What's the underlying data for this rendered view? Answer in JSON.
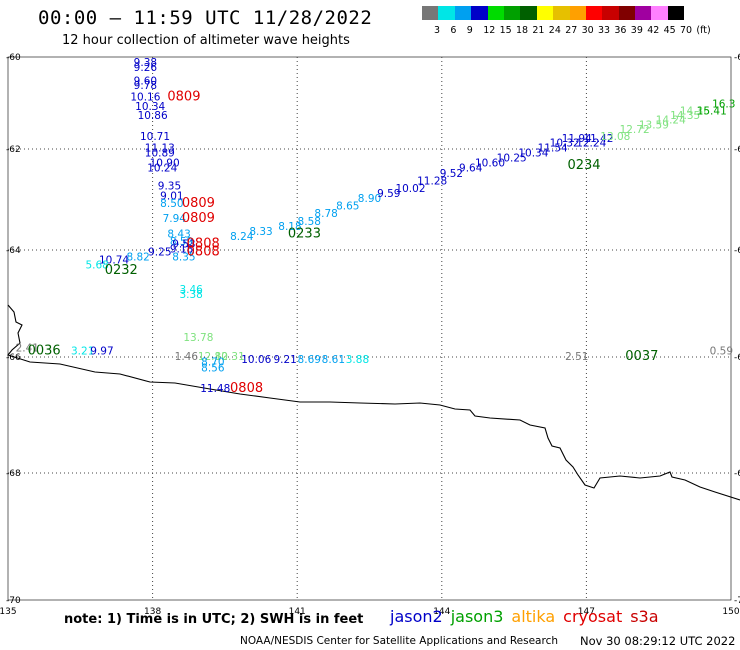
{
  "header": {
    "title": "00:00 – 11:59 UTC 11/28/2022",
    "subtitle": "12 hour collection of altimeter wave heights"
  },
  "scale": {
    "colors": [
      "#777777",
      "#00e6e6",
      "#00a0f0",
      "#0000c8",
      "#00dc00",
      "#00a000",
      "#006000",
      "#ffff00",
      "#e6c000",
      "#ffa000",
      "#ff0000",
      "#c80000",
      "#800000",
      "#a000a0",
      "#ff80ff",
      "#000000"
    ],
    "labels": [
      "3",
      "6",
      "9",
      "12",
      "15",
      "18",
      "21",
      "24",
      "27",
      "30",
      "33",
      "36",
      "39",
      "42",
      "45",
      "70",
      "(ft)"
    ]
  },
  "axes": {
    "lat_labels": [
      "-60",
      "-62",
      "-64",
      "-66",
      "-68",
      "-70"
    ],
    "lon_labels": [
      "135",
      "138",
      "141",
      "144",
      "147",
      "150"
    ]
  },
  "points": [
    {
      "t": "9.38",
      "c": "#0000c8",
      "lon": 137.85,
      "lat": -60.2
    },
    {
      "t": "9.26",
      "c": "#0000c8",
      "lon": 137.85,
      "lat": -60.3
    },
    {
      "t": "9.60",
      "c": "#0000c8",
      "lon": 137.85,
      "lat": -60.6
    },
    {
      "t": "9.78",
      "c": "#0000c8",
      "lon": 137.85,
      "lat": -60.7
    },
    {
      "t": "10.16",
      "c": "#0000c8",
      "lon": 137.85,
      "lat": -60.95
    },
    {
      "t": "10.34",
      "c": "#0000c8",
      "lon": 137.95,
      "lat": -61.15
    },
    {
      "t": "10.86",
      "c": "#0000c8",
      "lon": 138.0,
      "lat": -61.35
    },
    {
      "t": "10.71",
      "c": "#0000c8",
      "lon": 138.05,
      "lat": -61.8
    },
    {
      "t": "11.13",
      "c": "#0000c8",
      "lon": 138.15,
      "lat": -62.05
    },
    {
      "t": "10.89",
      "c": "#0000c8",
      "lon": 138.15,
      "lat": -62.15
    },
    {
      "t": "10.90",
      "c": "#0000c8",
      "lon": 138.25,
      "lat": -62.35
    },
    {
      "t": "10.24",
      "c": "#0000c8",
      "lon": 138.2,
      "lat": -62.45
    },
    {
      "t": "9.35",
      "c": "#0000c8",
      "lon": 138.35,
      "lat": -62.8
    },
    {
      "t": "9.01",
      "c": "#0000c8",
      "lon": 138.4,
      "lat": -63.0
    },
    {
      "t": "8.50",
      "c": "#00a0f0",
      "lon": 138.4,
      "lat": -63.15
    },
    {
      "t": "7.94",
      "c": "#00a0f0",
      "lon": 138.45,
      "lat": -63.45
    },
    {
      "t": "8.43",
      "c": "#00a0f0",
      "lon": 138.55,
      "lat": -63.75
    },
    {
      "t": "8.59",
      "c": "#00a0f0",
      "lon": 138.6,
      "lat": -63.9
    },
    {
      "t": "9.53",
      "c": "#0000c8",
      "lon": 138.65,
      "lat": -63.95
    },
    {
      "t": "9.18",
      "c": "#0000c8",
      "lon": 138.6,
      "lat": -64.05
    },
    {
      "t": "8.35",
      "c": "#00a0f0",
      "lon": 138.65,
      "lat": -64.2
    },
    {
      "t": "9.25",
      "c": "#0000c8",
      "lon": 138.15,
      "lat": -64.1
    },
    {
      "t": "8.82",
      "c": "#00a0f0",
      "lon": 137.7,
      "lat": -64.2
    },
    {
      "t": "10.74",
      "c": "#0000c8",
      "lon": 137.2,
      "lat": -64.25
    },
    {
      "t": "5.68",
      "c": "#00e6e6",
      "lon": 136.85,
      "lat": -64.35
    },
    {
      "t": "8.24",
      "c": "#00a0f0",
      "lon": 139.85,
      "lat": -63.8
    },
    {
      "t": "8.33",
      "c": "#00a0f0",
      "lon": 140.25,
      "lat": -63.7
    },
    {
      "t": "8.18",
      "c": "#00a0f0",
      "lon": 140.85,
      "lat": -63.6
    },
    {
      "t": "8.58",
      "c": "#00a0f0",
      "lon": 141.25,
      "lat": -63.5
    },
    {
      "t": "8.78",
      "c": "#00a0f0",
      "lon": 141.6,
      "lat": -63.35
    },
    {
      "t": "8.65",
      "c": "#00a0f0",
      "lon": 142.05,
      "lat": -63.2
    },
    {
      "t": "8.90",
      "c": "#00a0f0",
      "lon": 142.5,
      "lat": -63.05
    },
    {
      "t": "9.59",
      "c": "#0000c8",
      "lon": 142.9,
      "lat": -62.95
    },
    {
      "t": "10.02",
      "c": "#0000c8",
      "lon": 143.35,
      "lat": -62.85
    },
    {
      "t": "11.28",
      "c": "#0000c8",
      "lon": 143.8,
      "lat": -62.7
    },
    {
      "t": "9.52",
      "c": "#0000c8",
      "lon": 144.2,
      "lat": -62.55
    },
    {
      "t": "9.64",
      "c": "#0000c8",
      "lon": 144.6,
      "lat": -62.45
    },
    {
      "t": "10.60",
      "c": "#0000c8",
      "lon": 145.0,
      "lat": -62.35
    },
    {
      "t": "10.25",
      "c": "#0000c8",
      "lon": 145.45,
      "lat": -62.25
    },
    {
      "t": "10.34",
      "c": "#0000c8",
      "lon": 145.9,
      "lat": -62.15
    },
    {
      "t": "11.54",
      "c": "#0000c8",
      "lon": 146.3,
      "lat": -62.05
    },
    {
      "t": "10.32",
      "c": "#0000c8",
      "lon": 146.55,
      "lat": -61.95
    },
    {
      "t": "11.94",
      "c": "#0000c8",
      "lon": 146.8,
      "lat": -61.85
    },
    {
      "t": "12.24",
      "c": "#0000c8",
      "lon": 147.1,
      "lat": -61.95
    },
    {
      "t": "11.42",
      "c": "#0000c8",
      "lon": 147.25,
      "lat": -61.85
    },
    {
      "t": "13.08",
      "c": "#7fe27f",
      "lon": 147.6,
      "lat": -61.8
    },
    {
      "t": "12.72",
      "c": "#7fe27f",
      "lon": 148.0,
      "lat": -61.65
    },
    {
      "t": "13.59",
      "c": "#7fe27f",
      "lon": 148.4,
      "lat": -61.55
    },
    {
      "t": "14.24",
      "c": "#7fe27f",
      "lon": 148.75,
      "lat": -61.45
    },
    {
      "t": "14.35",
      "c": "#7fe27f",
      "lon": 149.05,
      "lat": -61.35
    },
    {
      "t": "14.36",
      "c": "#7fe27f",
      "lon": 149.25,
      "lat": -61.25
    },
    {
      "t": "15.41",
      "c": "#00a000",
      "lon": 149.6,
      "lat": -61.25
    },
    {
      "t": "16.3",
      "c": "#00a000",
      "lon": 149.85,
      "lat": -61.1
    },
    {
      "t": "3.46",
      "c": "#00e6e6",
      "lon": 138.8,
      "lat": -64.8
    },
    {
      "t": "3.38",
      "c": "#00e6e6",
      "lon": 138.8,
      "lat": -64.9
    },
    {
      "t": "13.78",
      "c": "#7fe27f",
      "lon": 138.95,
      "lat": -65.7
    },
    {
      "t": "1.46",
      "c": "#777777",
      "lon": 138.7,
      "lat": -66.05
    },
    {
      "t": "12.80",
      "c": "#7fe27f",
      "lon": 139.25,
      "lat": -66.05
    },
    {
      "t": "12.31",
      "c": "#7fe27f",
      "lon": 139.6,
      "lat": -66.05
    },
    {
      "t": "8.70",
      "c": "#00a0f0",
      "lon": 139.25,
      "lat": -66.15
    },
    {
      "t": "8.56",
      "c": "#00a0f0",
      "lon": 139.25,
      "lat": -66.25
    },
    {
      "t": "10.06",
      "c": "#0000c8",
      "lon": 140.15,
      "lat": -66.1
    },
    {
      "t": "9.21",
      "c": "#0000c8",
      "lon": 140.75,
      "lat": -66.1
    },
    {
      "t": "8.69",
      "c": "#00a0f0",
      "lon": 141.25,
      "lat": -66.1
    },
    {
      "t": "8.61",
      "c": "#00a0f0",
      "lon": 141.75,
      "lat": -66.1
    },
    {
      "t": "3.88",
      "c": "#00e6e6",
      "lon": 142.25,
      "lat": -66.1
    },
    {
      "t": "11.48",
      "c": "#0000c8",
      "lon": 139.3,
      "lat": -66.6
    },
    {
      "t": "2.41",
      "c": "#777777",
      "lon": 135.4,
      "lat": -65.9
    },
    {
      "t": "3.21",
      "c": "#00e6e6",
      "lon": 136.55,
      "lat": -65.95
    },
    {
      "t": "9.97",
      "c": "#0000c8",
      "lon": 136.95,
      "lat": -65.95
    },
    {
      "t": "2.51",
      "c": "#777777",
      "lon": 146.8,
      "lat": -66.05
    },
    {
      "t": "0.59",
      "c": "#777777",
      "lon": 149.8,
      "lat": -65.95
    }
  ],
  "pass_labels": [
    {
      "t": "0809",
      "c": "#e00000",
      "lon": 138.65,
      "lat": -60.95
    },
    {
      "t": "0809",
      "c": "#e00000",
      "lon": 138.95,
      "lat": -63.15
    },
    {
      "t": "0809",
      "c": "#e00000",
      "lon": 138.95,
      "lat": -63.45
    },
    {
      "t": "0808",
      "c": "#e00000",
      "lon": 139.05,
      "lat": -63.95
    },
    {
      "t": "0808",
      "c": "#e00000",
      "lon": 139.05,
      "lat": -64.1
    },
    {
      "t": "0232",
      "c": "#006000",
      "lon": 137.35,
      "lat": -64.45
    },
    {
      "t": "0233",
      "c": "#006000",
      "lon": 141.15,
      "lat": -63.75
    },
    {
      "t": "0234",
      "c": "#006000",
      "lon": 146.95,
      "lat": -62.4
    },
    {
      "t": "0036",
      "c": "#006000",
      "lon": 135.75,
      "lat": -65.95
    },
    {
      "t": "0037",
      "c": "#006000",
      "lon": 148.15,
      "lat": -66.05
    },
    {
      "t": "0808",
      "c": "#e00000",
      "lon": 139.95,
      "lat": -66.6
    }
  ],
  "footer": {
    "note": "note:  1) Time is in UTC;  2) SWH is in feet",
    "credit": "NOAA/NESDIS Center for Satellite Applications and Research",
    "stamp": "Nov 30 08:29:12 UTC 2022"
  },
  "satellites": [
    {
      "name": "jason2",
      "c": "#0000c8"
    },
    {
      "name": "jason3",
      "c": "#00a000"
    },
    {
      "name": "altika",
      "c": "#ffa000"
    },
    {
      "name": "cryosat",
      "c": "#e00000"
    },
    {
      "name": "s3a",
      "c": "#c80000"
    }
  ]
}
